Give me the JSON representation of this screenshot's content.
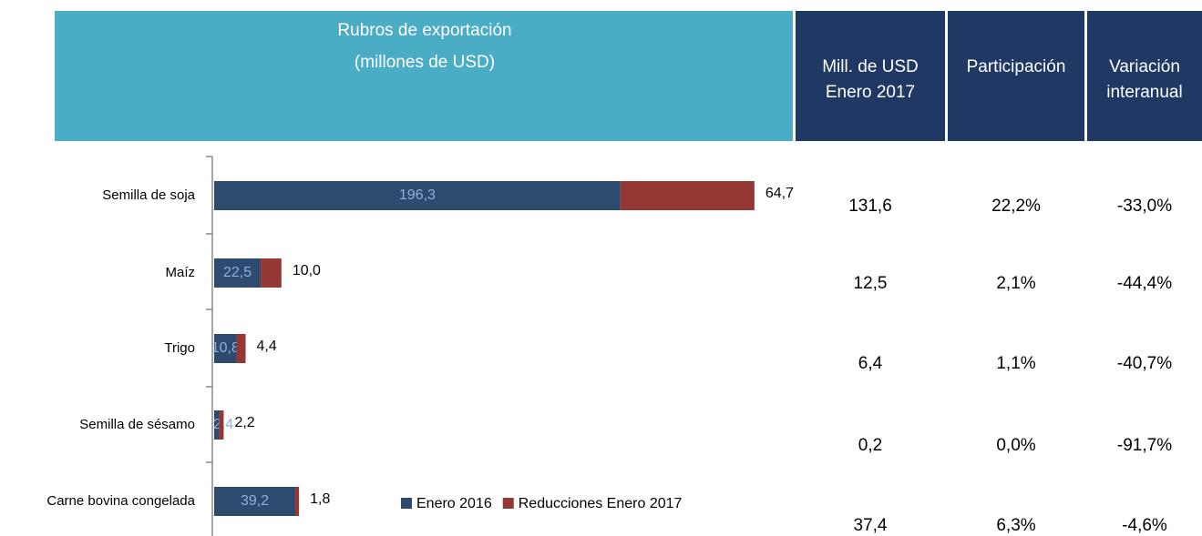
{
  "header": {
    "title": [
      "Rubros de exportación",
      "(millones de USD)"
    ],
    "columns": [
      [
        "Mill. de USD",
        "Enero 2017"
      ],
      [
        "Participación"
      ],
      [
        "Variación",
        "interanual"
      ]
    ]
  },
  "chart_data": {
    "type": "bar",
    "orientation": "horizontal",
    "stacked": true,
    "categories": [
      "Semilla de soja",
      "Maíz",
      "Trigo",
      "Semilla de sésamo",
      "Carne bovina congelada"
    ],
    "series": [
      {
        "name": "Enero 2016",
        "color": "#2e4a6f",
        "values": [
          196.3,
          22.5,
          10.8,
          2.4,
          39.2
        ],
        "value_labels": [
          "196,3",
          "22,5",
          "10,8",
          "2,4",
          "39,2"
        ]
      },
      {
        "name": "Reducciones Enero 2017",
        "color": "#953735",
        "values": [
          64.7,
          10.0,
          4.4,
          2.2,
          1.8
        ],
        "value_labels": [
          "64,7",
          "10,0",
          "4,4",
          "2,2",
          "1,8"
        ]
      }
    ],
    "xlim": [
      0,
      280
    ],
    "legend": "bottom"
  },
  "table": {
    "rows": [
      [
        "131,6",
        "22,2%",
        "-33,0%"
      ],
      [
        "12,5",
        "2,1%",
        "-44,4%"
      ],
      [
        "6,4",
        "1,1%",
        "-40,7%"
      ],
      [
        "0,2",
        "0,0%",
        "-91,7%"
      ],
      [
        "37,4",
        "6,3%",
        "-4,6%"
      ]
    ]
  }
}
